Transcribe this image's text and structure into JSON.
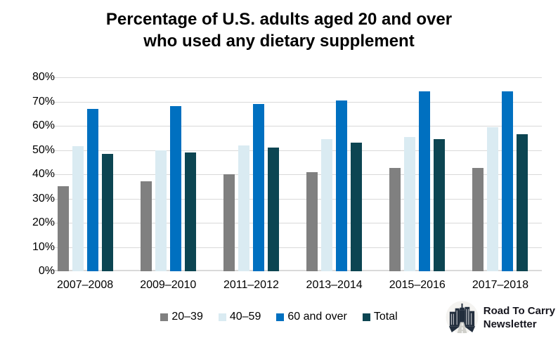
{
  "title": "Percentage of U.S. adults aged 20 and over\nwho used any dietary supplement",
  "chart_data": {
    "type": "bar",
    "title": "Percentage of U.S. adults aged 20 and over who used any dietary supplement",
    "categories": [
      "2007–2008",
      "2009–2010",
      "2011–2012",
      "2013–2014",
      "2015–2016",
      "2017–2018"
    ],
    "series": [
      {
        "name": "20–39",
        "color": "#808080",
        "values": [
          35.0,
          37.0,
          40.0,
          41.0,
          42.5,
          42.5
        ]
      },
      {
        "name": "40–59",
        "color": "#DAEBF2",
        "values": [
          51.5,
          50.0,
          52.0,
          54.5,
          55.5,
          59.3
        ]
      },
      {
        "name": "60 and over",
        "color": "#0070C0",
        "values": [
          67.0,
          68.0,
          69.0,
          70.5,
          74.1,
          74.3
        ]
      },
      {
        "name": "Total",
        "color": "#0C4552",
        "values": [
          48.5,
          49.0,
          51.0,
          53.0,
          54.5,
          56.5
        ]
      }
    ],
    "xlabel": "",
    "ylabel": "",
    "ylim": [
      0,
      80
    ],
    "yticks": [
      "0%",
      "10%",
      "20%",
      "30%",
      "40%",
      "50%",
      "60%",
      "70%",
      "80%"
    ],
    "grid": true,
    "gridline_color": "#D9D9D9",
    "legend_position": "bottom"
  },
  "branding": {
    "icon": "city-road-logo",
    "line1": "Road To Carry",
    "line2": "Newsletter"
  }
}
